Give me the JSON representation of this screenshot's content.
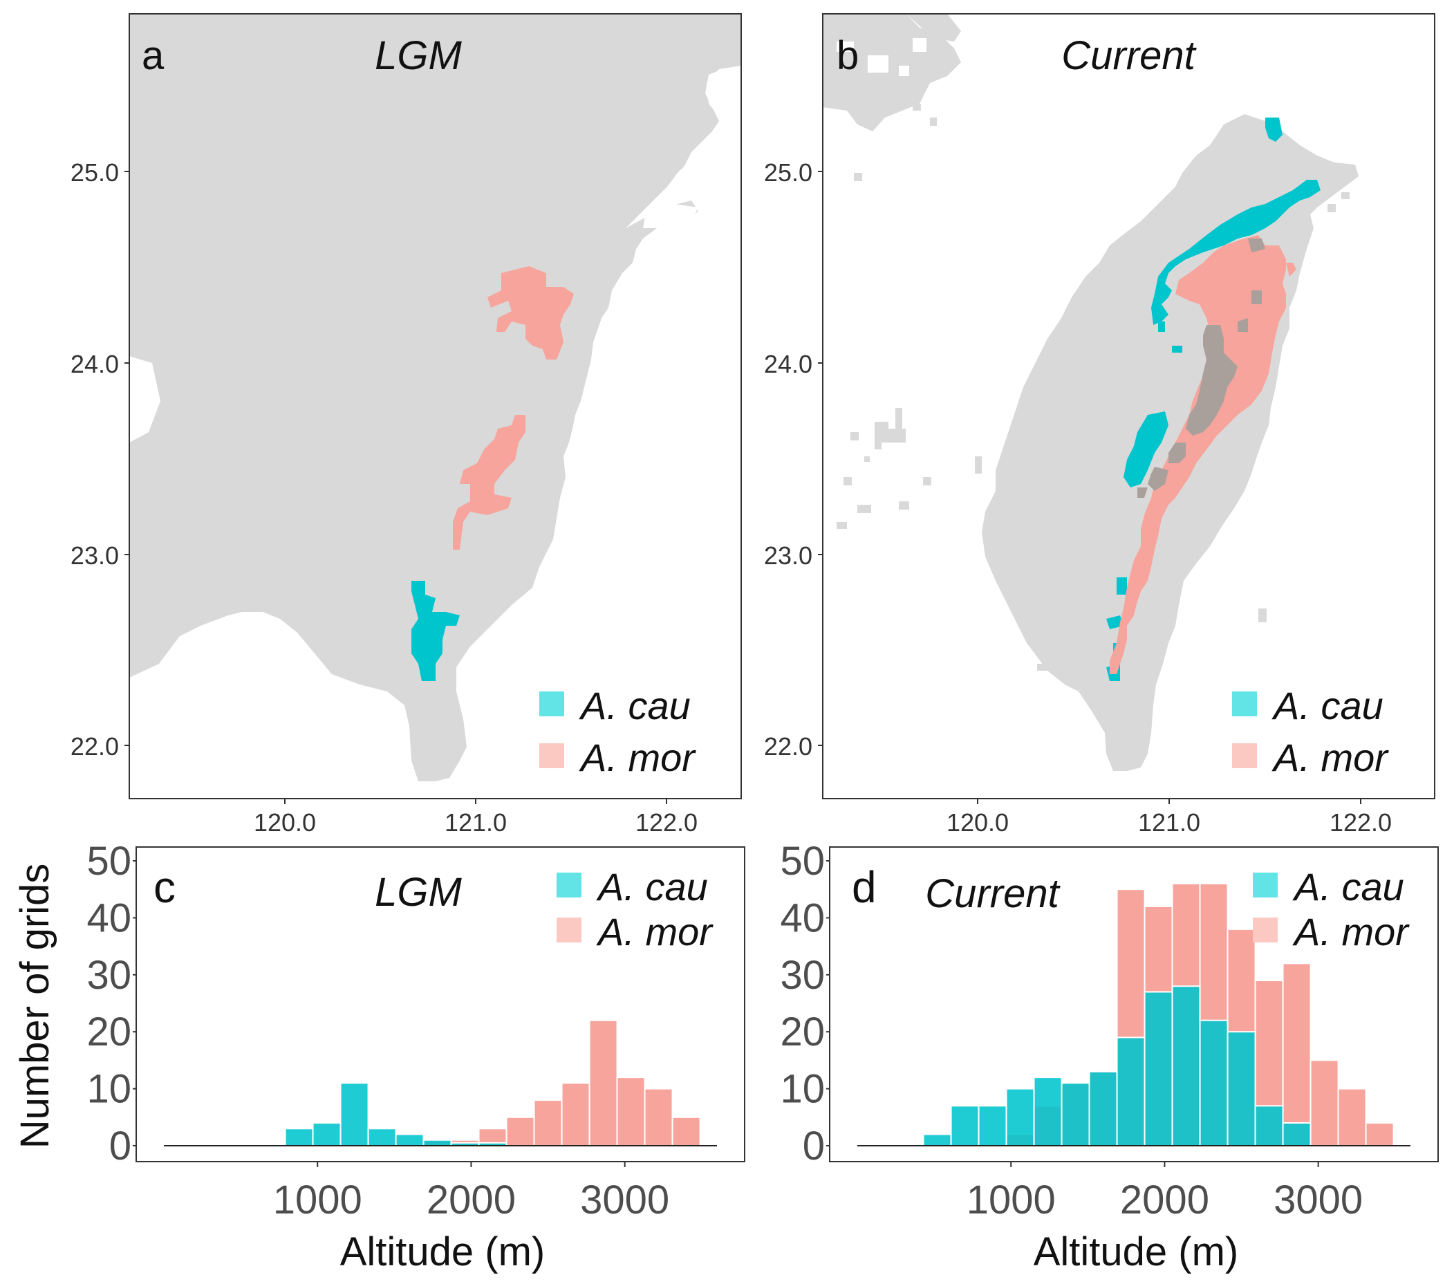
{
  "colors": {
    "cau": "#00c5cd",
    "mor": "#f7a49c",
    "land": "#d9d9d9",
    "overlap": "#a9a09c",
    "cau_light": "#62e3e5",
    "mor_light": "#fbc9c2",
    "axis": "#333333"
  },
  "chart_data": [
    {
      "type": "map",
      "panel_label": "a",
      "title": "LGM",
      "x_ticks": [
        "120.0",
        "121.0",
        "122.0"
      ],
      "y_ticks": [
        "25.0",
        "24.0",
        "23.0",
        "22.0"
      ],
      "xlim": [
        119.15,
        122.4
      ],
      "ylim": [
        21.7,
        25.82
      ],
      "legend": [
        {
          "key": "cau",
          "label": "A. cau"
        },
        {
          "key": "mor",
          "label": "A. mor"
        }
      ]
    },
    {
      "type": "map",
      "panel_label": "b",
      "title": "Current",
      "x_ticks": [
        "120.0",
        "121.0",
        "122.0"
      ],
      "y_ticks": [
        "25.0",
        "24.0",
        "23.0",
        "22.0"
      ],
      "xlim": [
        119.15,
        122.4
      ],
      "ylim": [
        21.7,
        25.82
      ],
      "legend": [
        {
          "key": "cau",
          "label": "A. cau"
        },
        {
          "key": "mor",
          "label": "A. mor"
        }
      ]
    },
    {
      "type": "bar",
      "panel_label": "c",
      "title": "LGM",
      "xlabel": "Altitude (m)",
      "ylabel": "Number of grids",
      "x_ticks": [
        "1000",
        "2000",
        "3000"
      ],
      "y_ticks": [
        "0",
        "10",
        "20",
        "30",
        "40",
        "50"
      ],
      "xlim": [
        0,
        3600
      ],
      "ylim": [
        0,
        50
      ],
      "bin_width": 180,
      "legend": [
        {
          "key": "cau",
          "label": "A. cau"
        },
        {
          "key": "mor",
          "label": "A. mor"
        }
      ],
      "series": [
        {
          "name": "A. cau",
          "bins": [
            [
              880,
              3
            ],
            [
              1060,
              4
            ],
            [
              1240,
              11
            ],
            [
              1420,
              3
            ],
            [
              1600,
              2
            ],
            [
              1780,
              1
            ],
            [
              1960,
              0.5
            ],
            [
              2140,
              0.5
            ]
          ]
        },
        {
          "name": "A. mor",
          "bins": [
            [
              1780,
              1
            ],
            [
              1960,
              1
            ],
            [
              2140,
              3
            ],
            [
              2320,
              5
            ],
            [
              2500,
              8
            ],
            [
              2680,
              11
            ],
            [
              2860,
              22
            ],
            [
              3040,
              12
            ],
            [
              3220,
              10
            ],
            [
              3400,
              5
            ]
          ]
        }
      ]
    },
    {
      "type": "bar",
      "panel_label": "d",
      "title": "Current",
      "xlabel": "Altitude (m)",
      "x_ticks": [
        "1000",
        "2000",
        "3000"
      ],
      "y_ticks": [
        "0",
        "10",
        "20",
        "30",
        "40",
        "50"
      ],
      "xlim": [
        0,
        3600
      ],
      "ylim": [
        0,
        50
      ],
      "bin_width": 180,
      "legend": [
        {
          "key": "cau",
          "label": "A. cau"
        },
        {
          "key": "mor",
          "label": "A. mor"
        }
      ],
      "series": [
        {
          "name": "A. cau",
          "bins": [
            [
              520,
              2
            ],
            [
              700,
              7
            ],
            [
              880,
              7
            ],
            [
              1060,
              10
            ],
            [
              1240,
              12
            ],
            [
              1420,
              11
            ],
            [
              1600,
              13
            ],
            [
              1780,
              19
            ],
            [
              1960,
              27
            ],
            [
              2140,
              28
            ],
            [
              2320,
              22
            ],
            [
              2500,
              20
            ],
            [
              2680,
              7
            ],
            [
              2860,
              4
            ]
          ]
        },
        {
          "name": "A. mor",
          "bins": [
            [
              1060,
              2
            ],
            [
              1240,
              7
            ],
            [
              1420,
              11
            ],
            [
              1600,
              13
            ],
            [
              1780,
              45
            ],
            [
              1960,
              42
            ],
            [
              2140,
              46
            ],
            [
              2320,
              46
            ],
            [
              2500,
              38
            ],
            [
              2680,
              29
            ],
            [
              2860,
              32
            ],
            [
              3040,
              15
            ],
            [
              3220,
              10
            ],
            [
              3400,
              4
            ]
          ]
        }
      ]
    }
  ]
}
